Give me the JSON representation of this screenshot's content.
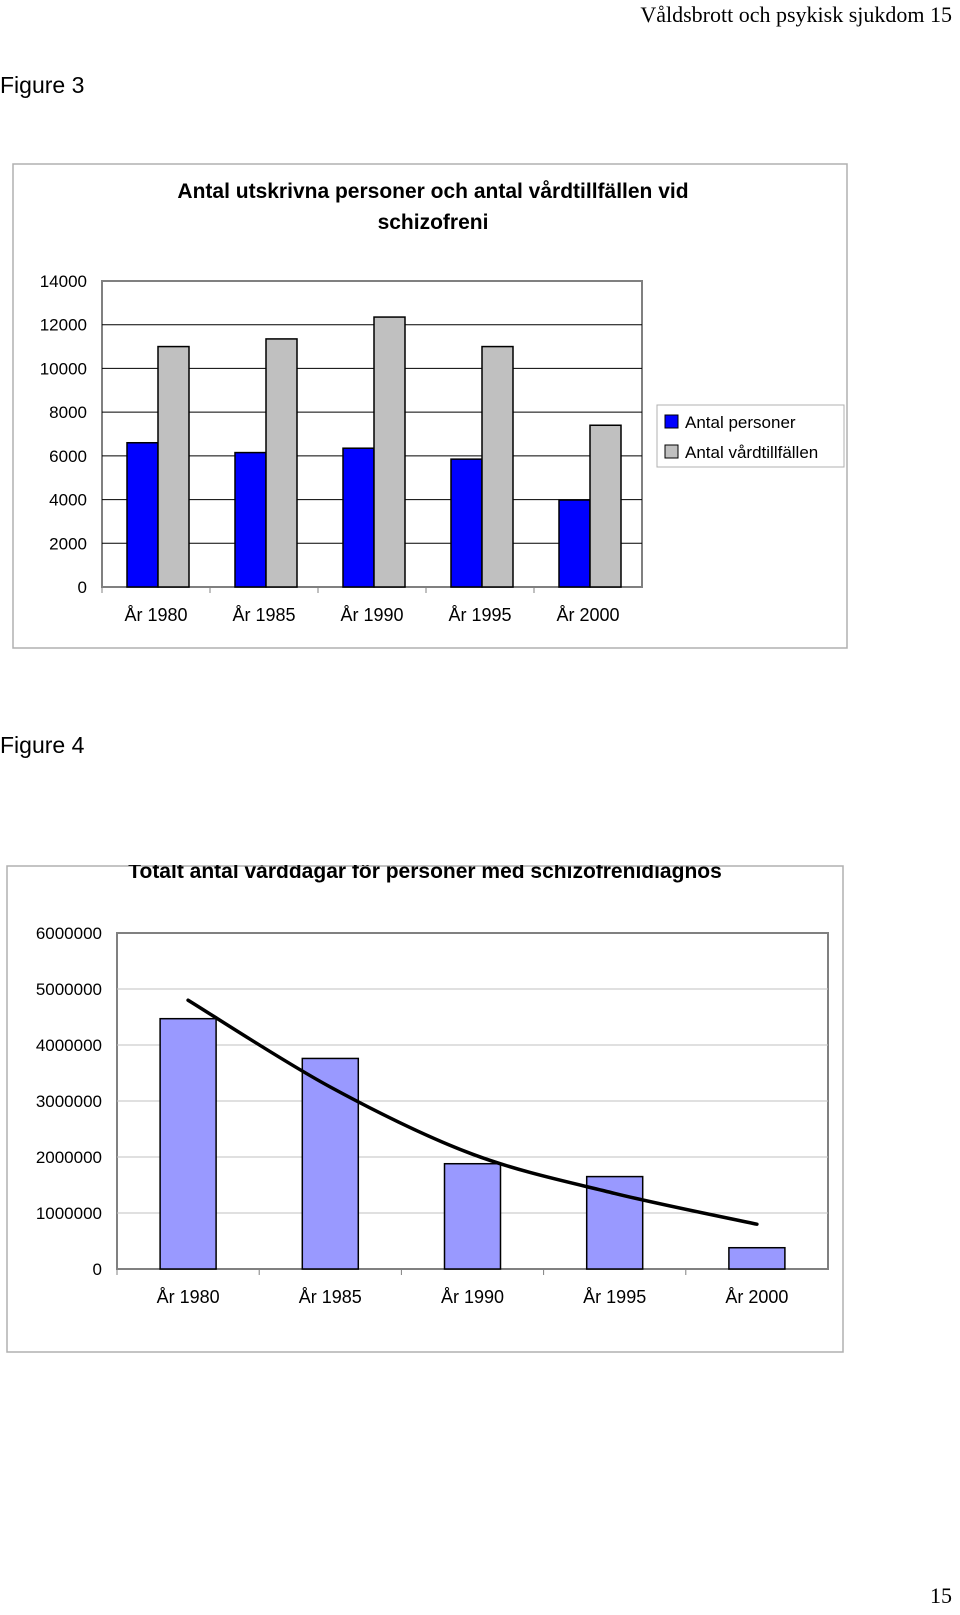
{
  "header": {
    "running_title": "Våldsbrott och psykisk sjukdom 15"
  },
  "figures": [
    {
      "label": "Figure 3"
    },
    {
      "label": "Figure 4"
    }
  ],
  "footer": {
    "page_number": "15"
  },
  "chart_data": [
    {
      "type": "bar",
      "title": "Antal utskrivna personer och antal vårdtillfällen vid schizofreni",
      "title_lines": [
        "Antal utskrivna personer och antal vårdtillfällen vid",
        "schizofreni"
      ],
      "categories": [
        "År 1980",
        "År 1985",
        "År 1990",
        "År 1995",
        "År 2000"
      ],
      "series": [
        {
          "name": "Antal personer",
          "values": [
            6600,
            6150,
            6350,
            5850,
            3980
          ],
          "color": "#0000ff"
        },
        {
          "name": "Antal vårdtillfällen",
          "values": [
            11000,
            11350,
            12350,
            11000,
            7400
          ],
          "color": "#c0c0c0"
        }
      ],
      "yticks": [
        "0",
        "2000",
        "4000",
        "6000",
        "8000",
        "10000",
        "12000",
        "14000"
      ],
      "ylim": [
        0,
        14000
      ],
      "legend": "right",
      "grid": true
    },
    {
      "type": "bar",
      "title": "Totalt antal vårddagar för personer med schizofrenidiagnos",
      "categories": [
        "År 1980",
        "År 1985",
        "År 1990",
        "År 1995",
        "År 2000"
      ],
      "series": [
        {
          "values": [
            4470000,
            3760000,
            1880000,
            1650000,
            380000
          ],
          "color": "#9999ff"
        }
      ],
      "trendline": {
        "type": "exponential",
        "values": [
          4800000,
          3250000,
          2050000,
          1350000,
          800000
        ]
      },
      "yticks": [
        "0",
        "1000000",
        "2000000",
        "3000000",
        "4000000",
        "5000000",
        "6000000"
      ],
      "ylim": [
        0,
        6000000
      ],
      "grid": true
    }
  ]
}
